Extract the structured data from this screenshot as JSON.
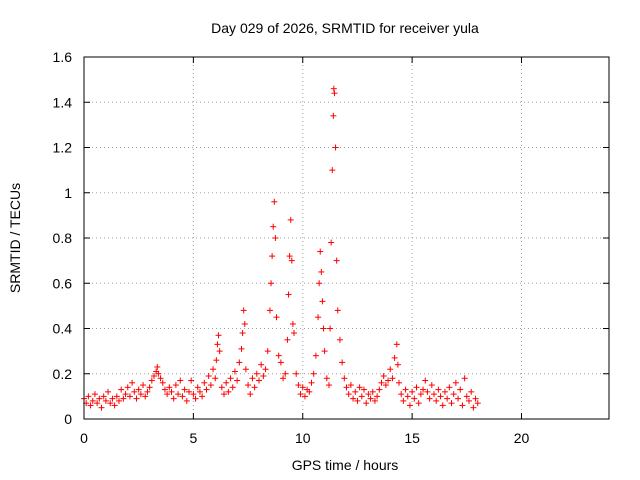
{
  "chart_data": {
    "type": "scatter",
    "title": "Day 029 of 2026, SRMTID for receiver yula",
    "xlabel": "GPS time / hours",
    "ylabel": "SRMTID / TECUs",
    "xlim": [
      0,
      24
    ],
    "ylim": [
      0,
      1.6
    ],
    "x_ticks": [
      0,
      5,
      10,
      15,
      20
    ],
    "x_tick_labels": [
      "0",
      "5",
      "10",
      "15",
      "20"
    ],
    "y_ticks": [
      0,
      0.2,
      0.4,
      0.6,
      0.8,
      1.0,
      1.2,
      1.4,
      1.6
    ],
    "y_tick_labels": [
      "0",
      "0.2",
      "0.4",
      "0.6",
      "0.8",
      "1",
      "1.2",
      "1.4",
      "1.6"
    ],
    "grid": true,
    "marker": "+",
    "color": "#ff0000",
    "series": [
      {
        "name": "SRMTID",
        "points": [
          [
            0.0,
            0.09
          ],
          [
            0.1,
            0.07
          ],
          [
            0.2,
            0.1
          ],
          [
            0.3,
            0.06
          ],
          [
            0.4,
            0.08
          ],
          [
            0.5,
            0.11
          ],
          [
            0.6,
            0.07
          ],
          [
            0.7,
            0.09
          ],
          [
            0.8,
            0.05
          ],
          [
            0.9,
            0.1
          ],
          [
            1.0,
            0.08
          ],
          [
            1.1,
            0.12
          ],
          [
            1.2,
            0.07
          ],
          [
            1.3,
            0.09
          ],
          [
            1.4,
            0.06
          ],
          [
            1.5,
            0.1
          ],
          [
            1.6,
            0.08
          ],
          [
            1.7,
            0.13
          ],
          [
            1.8,
            0.09
          ],
          [
            1.9,
            0.11
          ],
          [
            2.0,
            0.14
          ],
          [
            2.1,
            0.1
          ],
          [
            2.2,
            0.16
          ],
          [
            2.3,
            0.12
          ],
          [
            2.4,
            0.09
          ],
          [
            2.5,
            0.13
          ],
          [
            2.6,
            0.11
          ],
          [
            2.7,
            0.15
          ],
          [
            2.8,
            0.1
          ],
          [
            2.9,
            0.12
          ],
          [
            3.0,
            0.14
          ],
          [
            3.1,
            0.17
          ],
          [
            3.2,
            0.19
          ],
          [
            3.3,
            0.21
          ],
          [
            3.35,
            0.23
          ],
          [
            3.4,
            0.2
          ],
          [
            3.5,
            0.18
          ],
          [
            3.6,
            0.16
          ],
          [
            3.7,
            0.13
          ],
          [
            3.8,
            0.11
          ],
          [
            3.9,
            0.14
          ],
          [
            4.0,
            0.12
          ],
          [
            4.1,
            0.09
          ],
          [
            4.2,
            0.15
          ],
          [
            4.3,
            0.11
          ],
          [
            4.4,
            0.17
          ],
          [
            4.5,
            0.1
          ],
          [
            4.6,
            0.13
          ],
          [
            4.7,
            0.08
          ],
          [
            4.8,
            0.12
          ],
          [
            4.9,
            0.17
          ],
          [
            5.0,
            0.11
          ],
          [
            5.1,
            0.09
          ],
          [
            5.2,
            0.14
          ],
          [
            5.3,
            0.12
          ],
          [
            5.4,
            0.1
          ],
          [
            5.5,
            0.16
          ],
          [
            5.6,
            0.13
          ],
          [
            5.7,
            0.19
          ],
          [
            5.8,
            0.15
          ],
          [
            5.9,
            0.22
          ],
          [
            6.0,
            0.18
          ],
          [
            6.05,
            0.26
          ],
          [
            6.1,
            0.33
          ],
          [
            6.15,
            0.37
          ],
          [
            6.2,
            0.3
          ],
          [
            6.3,
            0.14
          ],
          [
            6.4,
            0.11
          ],
          [
            6.5,
            0.16
          ],
          [
            6.6,
            0.12
          ],
          [
            6.7,
            0.18
          ],
          [
            6.8,
            0.14
          ],
          [
            6.9,
            0.21
          ],
          [
            7.0,
            0.17
          ],
          [
            7.1,
            0.25
          ],
          [
            7.2,
            0.31
          ],
          [
            7.25,
            0.38
          ],
          [
            7.3,
            0.48
          ],
          [
            7.35,
            0.42
          ],
          [
            7.4,
            0.22
          ],
          [
            7.5,
            0.15
          ],
          [
            7.6,
            0.11
          ],
          [
            7.7,
            0.18
          ],
          [
            7.8,
            0.14
          ],
          [
            7.9,
            0.2
          ],
          [
            8.0,
            0.17
          ],
          [
            8.1,
            0.24
          ],
          [
            8.2,
            0.19
          ],
          [
            8.3,
            0.22
          ],
          [
            8.4,
            0.3
          ],
          [
            8.5,
            0.48
          ],
          [
            8.55,
            0.6
          ],
          [
            8.6,
            0.72
          ],
          [
            8.65,
            0.85
          ],
          [
            8.7,
            0.96
          ],
          [
            8.75,
            0.8
          ],
          [
            8.8,
            0.45
          ],
          [
            8.9,
            0.28
          ],
          [
            9.0,
            0.25
          ],
          [
            9.1,
            0.18
          ],
          [
            9.2,
            0.2
          ],
          [
            9.3,
            0.35
          ],
          [
            9.35,
            0.55
          ],
          [
            9.4,
            0.72
          ],
          [
            9.45,
            0.88
          ],
          [
            9.5,
            0.7
          ],
          [
            9.55,
            0.42
          ],
          [
            9.6,
            0.38
          ],
          [
            9.7,
            0.2
          ],
          [
            9.8,
            0.15
          ],
          [
            9.9,
            0.11
          ],
          [
            10.0,
            0.14
          ],
          [
            10.1,
            0.1
          ],
          [
            10.2,
            0.13
          ],
          [
            10.3,
            0.12
          ],
          [
            10.4,
            0.16
          ],
          [
            10.5,
            0.2
          ],
          [
            10.6,
            0.28
          ],
          [
            10.7,
            0.45
          ],
          [
            10.75,
            0.6
          ],
          [
            10.8,
            0.74
          ],
          [
            10.85,
            0.65
          ],
          [
            10.9,
            0.52
          ],
          [
            10.95,
            0.4
          ],
          [
            11.0,
            0.3
          ],
          [
            11.1,
            0.18
          ],
          [
            11.2,
            0.15
          ],
          [
            11.25,
            0.4
          ],
          [
            11.3,
            0.78
          ],
          [
            11.35,
            1.1
          ],
          [
            11.4,
            1.34
          ],
          [
            11.42,
            1.46
          ],
          [
            11.45,
            1.44
          ],
          [
            11.5,
            1.2
          ],
          [
            11.55,
            0.7
          ],
          [
            11.6,
            0.48
          ],
          [
            11.7,
            0.35
          ],
          [
            11.8,
            0.25
          ],
          [
            11.9,
            0.18
          ],
          [
            12.0,
            0.14
          ],
          [
            12.1,
            0.11
          ],
          [
            12.2,
            0.15
          ],
          [
            12.3,
            0.09
          ],
          [
            12.4,
            0.12
          ],
          [
            12.5,
            0.08
          ],
          [
            12.6,
            0.14
          ],
          [
            12.7,
            0.1
          ],
          [
            12.8,
            0.13
          ],
          [
            12.9,
            0.07
          ],
          [
            13.0,
            0.11
          ],
          [
            13.1,
            0.09
          ],
          [
            13.2,
            0.12
          ],
          [
            13.3,
            0.08
          ],
          [
            13.4,
            0.1
          ],
          [
            13.5,
            0.13
          ],
          [
            13.6,
            0.16
          ],
          [
            13.7,
            0.19
          ],
          [
            13.8,
            0.15
          ],
          [
            13.9,
            0.17
          ],
          [
            14.0,
            0.22
          ],
          [
            14.1,
            0.18
          ],
          [
            14.2,
            0.27
          ],
          [
            14.3,
            0.33
          ],
          [
            14.35,
            0.24
          ],
          [
            14.4,
            0.16
          ],
          [
            14.5,
            0.11
          ],
          [
            14.6,
            0.08
          ],
          [
            14.7,
            0.13
          ],
          [
            14.8,
            0.1
          ],
          [
            14.9,
            0.06
          ],
          [
            15.0,
            0.12
          ],
          [
            15.1,
            0.09
          ],
          [
            15.2,
            0.14
          ],
          [
            15.3,
            0.07
          ],
          [
            15.4,
            0.11
          ],
          [
            15.5,
            0.13
          ],
          [
            15.6,
            0.17
          ],
          [
            15.7,
            0.12
          ],
          [
            15.8,
            0.09
          ],
          [
            15.9,
            0.15
          ],
          [
            16.0,
            0.11
          ],
          [
            16.1,
            0.08
          ],
          [
            16.2,
            0.13
          ],
          [
            16.3,
            0.1
          ],
          [
            16.4,
            0.06
          ],
          [
            16.5,
            0.12
          ],
          [
            16.6,
            0.09
          ],
          [
            16.7,
            0.14
          ],
          [
            16.8,
            0.07
          ],
          [
            16.9,
            0.11
          ],
          [
            17.0,
            0.16
          ],
          [
            17.1,
            0.09
          ],
          [
            17.2,
            0.13
          ],
          [
            17.3,
            0.06
          ],
          [
            17.4,
            0.18
          ],
          [
            17.5,
            0.1
          ],
          [
            17.6,
            0.08
          ],
          [
            17.7,
            0.12
          ],
          [
            17.8,
            0.05
          ],
          [
            17.9,
            0.09
          ],
          [
            18.0,
            0.07
          ]
        ]
      }
    ]
  }
}
